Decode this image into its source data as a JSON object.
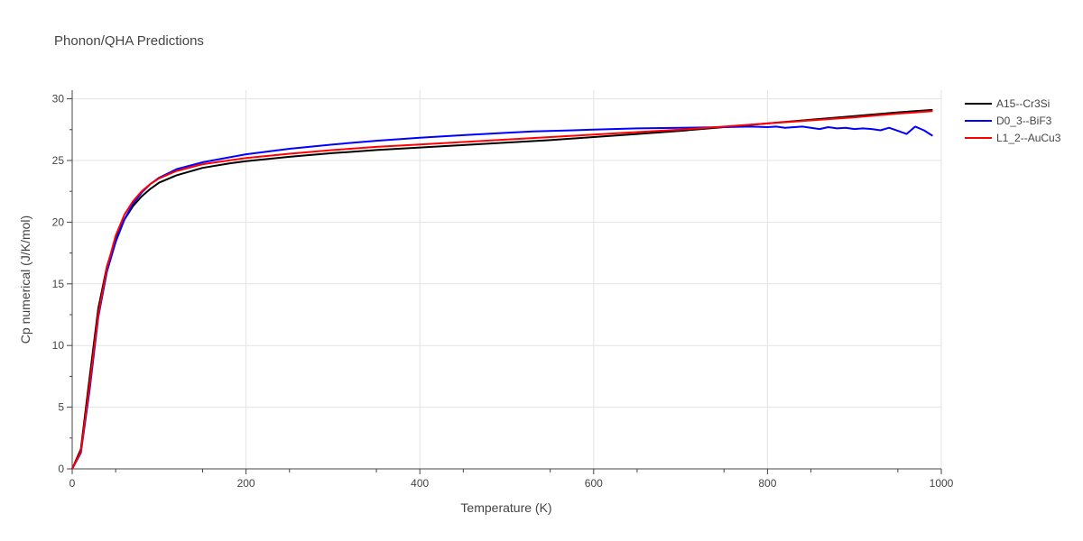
{
  "chart_data": {
    "type": "line",
    "title": "Phonon/QHA Predictions",
    "xlabel": "Temperature (K)",
    "ylabel": "Cp numerical (J/K/mol)",
    "xlim": [
      0,
      1000
    ],
    "ylim": [
      0,
      30.7
    ],
    "xticks": [
      0,
      200,
      400,
      600,
      800,
      1000
    ],
    "yticks": [
      0,
      5,
      10,
      15,
      20,
      25,
      30
    ],
    "grid": true,
    "legend_position": "top-right",
    "series": [
      {
        "name": "A15--Cr3Si",
        "color": "#000000",
        "x": [
          0,
          10,
          20,
          30,
          40,
          50,
          60,
          70,
          80,
          90,
          100,
          120,
          150,
          180,
          200,
          250,
          300,
          350,
          400,
          450,
          500,
          550,
          600,
          650,
          700,
          750,
          800,
          850,
          900,
          950,
          990
        ],
        "y": [
          0,
          1.6,
          7.4,
          13.0,
          16.4,
          18.7,
          20.2,
          21.3,
          22.1,
          22.7,
          23.2,
          23.8,
          24.4,
          24.75,
          24.95,
          25.3,
          25.6,
          25.85,
          26.05,
          26.25,
          26.45,
          26.65,
          26.9,
          27.15,
          27.4,
          27.7,
          28.0,
          28.3,
          28.6,
          28.9,
          29.1
        ]
      },
      {
        "name": "D0_3--BiF3",
        "color": "#0000ff",
        "x": [
          0,
          10,
          20,
          30,
          40,
          50,
          60,
          70,
          80,
          90,
          100,
          120,
          150,
          180,
          200,
          250,
          300,
          350,
          400,
          450,
          500,
          530,
          600,
          650,
          700,
          750,
          780,
          800,
          810,
          820,
          840,
          850,
          860,
          870,
          880,
          890,
          900,
          910,
          920,
          930,
          940,
          950,
          960,
          970,
          980,
          990
        ],
        "y": [
          0,
          1.3,
          6.4,
          12.3,
          16.0,
          18.4,
          20.2,
          21.5,
          22.4,
          23.1,
          23.6,
          24.3,
          24.85,
          25.25,
          25.5,
          25.95,
          26.3,
          26.6,
          26.85,
          27.05,
          27.25,
          27.35,
          27.5,
          27.6,
          27.65,
          27.7,
          27.75,
          27.7,
          27.75,
          27.65,
          27.75,
          27.65,
          27.55,
          27.7,
          27.6,
          27.65,
          27.55,
          27.6,
          27.55,
          27.45,
          27.65,
          27.4,
          27.15,
          27.75,
          27.45,
          27.0
        ]
      },
      {
        "name": "L1_2--AuCu3",
        "color": "#ff0000",
        "x": [
          0,
          10,
          20,
          30,
          40,
          50,
          60,
          70,
          80,
          90,
          100,
          120,
          150,
          180,
          200,
          250,
          300,
          350,
          400,
          450,
          500,
          550,
          600,
          650,
          700,
          750,
          800,
          850,
          900,
          950,
          990
        ],
        "y": [
          0,
          1.4,
          6.8,
          12.5,
          16.3,
          18.9,
          20.6,
          21.7,
          22.5,
          23.1,
          23.55,
          24.15,
          24.7,
          25.0,
          25.2,
          25.55,
          25.85,
          26.1,
          26.3,
          26.5,
          26.7,
          26.9,
          27.1,
          27.3,
          27.5,
          27.75,
          28.0,
          28.25,
          28.5,
          28.8,
          29.0
        ]
      }
    ]
  }
}
